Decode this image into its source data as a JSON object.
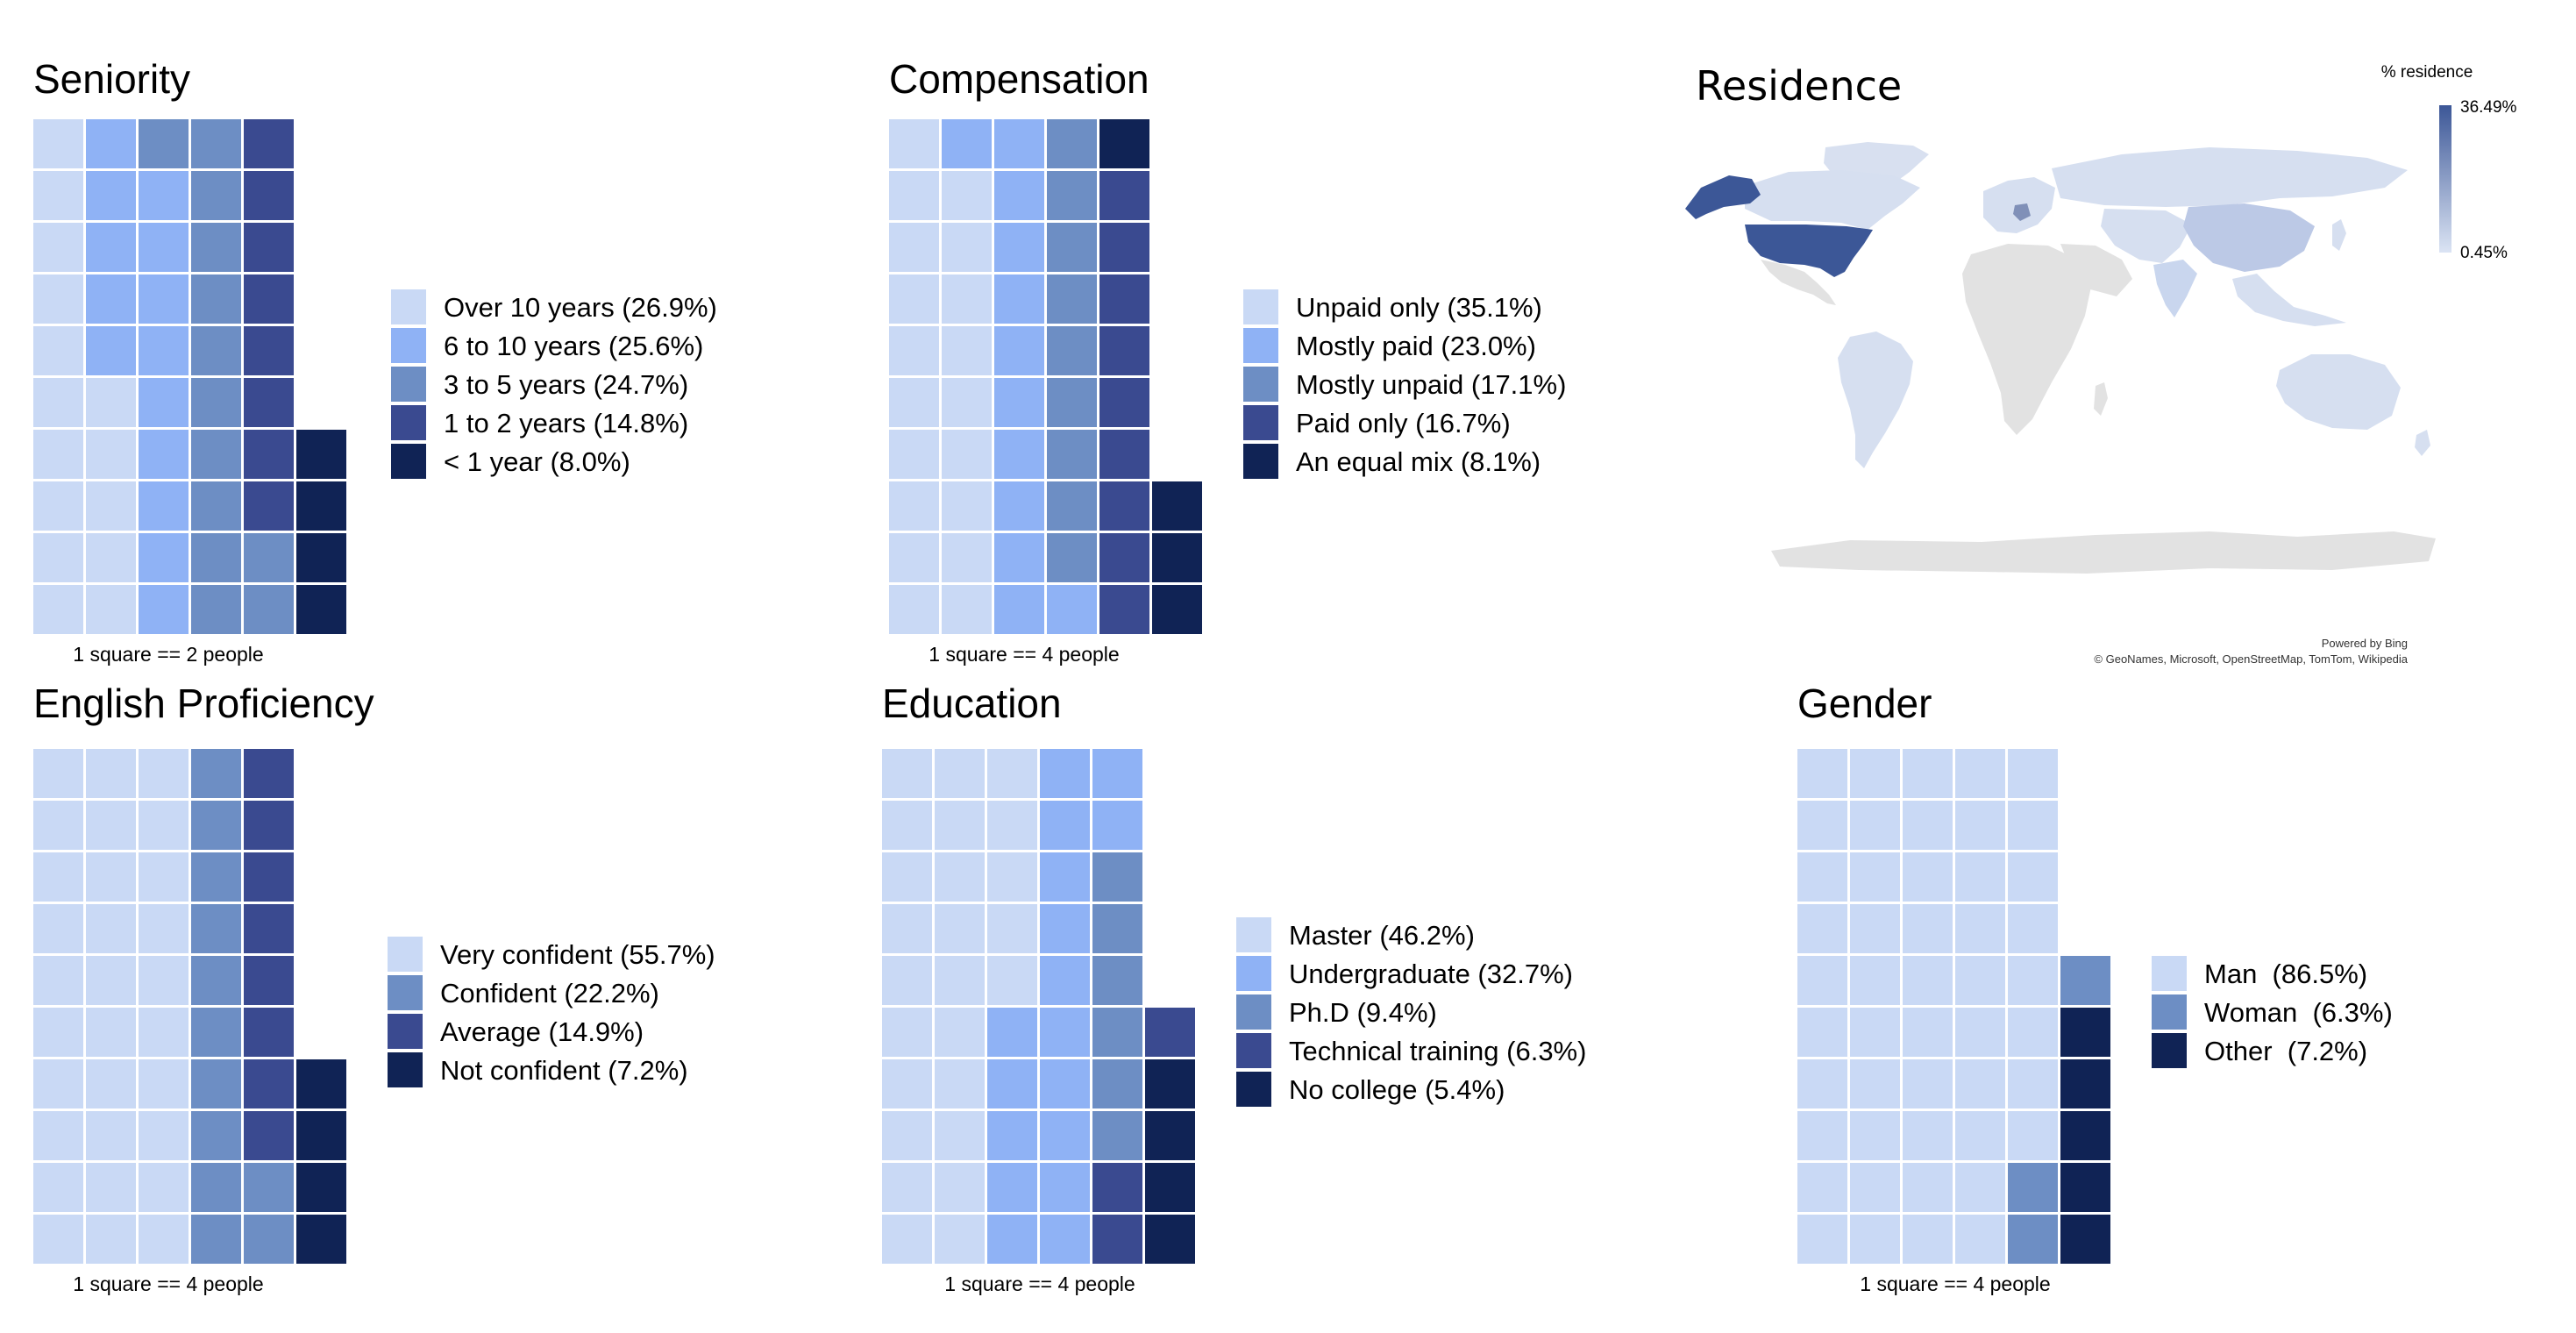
{
  "colors": {
    "c1": "#c9d9f5",
    "c2": "#8fb2f5",
    "c3": "#6d8ec4",
    "c4": "#3a4a90",
    "c5": "#102355",
    "land": "#e2e2e2"
  },
  "chart_data": [
    {
      "type": "waffle",
      "title": "Seniority",
      "caption": "1 square == 2 people",
      "legend": [
        {
          "label": "Over 10 years (26.9%)",
          "color": "c1"
        },
        {
          "label": "6 to 10 years (25.6%)",
          "color": "c2"
        },
        {
          "label": "3 to 5 years (24.7%)",
          "color": "c3"
        },
        {
          "label": "1 to 2 years (14.8%)",
          "color": "c4"
        },
        {
          "label": "< 1 year (8.0%)",
          "color": "c5"
        }
      ],
      "columns": [
        [
          "c1",
          "c1",
          "c1",
          "c1",
          "c1",
          "c1",
          "c1",
          "c1",
          "c1",
          "c1"
        ],
        [
          "c1",
          "c1",
          "c1",
          "c1",
          "c1",
          "c2",
          "c2",
          "c2",
          "c2",
          "c2"
        ],
        [
          "c2",
          "c2",
          "c2",
          "c2",
          "c2",
          "c2",
          "c2",
          "c2",
          "c2",
          "c3"
        ],
        [
          "c3",
          "c3",
          "c3",
          "c3",
          "c3",
          "c3",
          "c3",
          "c3",
          "c3",
          "c3"
        ],
        [
          "c3",
          "c3",
          "c4",
          "c4",
          "c4",
          "c4",
          "c4",
          "c4",
          "c4",
          "c4"
        ],
        [
          "c5",
          "c5",
          "c5",
          "c5"
        ]
      ]
    },
    {
      "type": "waffle",
      "title": "Compensation",
      "caption": "1 square == 4 people",
      "legend": [
        {
          "label": "Unpaid only (35.1%)",
          "color": "c1"
        },
        {
          "label": "Mostly paid (23.0%)",
          "color": "c2"
        },
        {
          "label": "Mostly unpaid (17.1%)",
          "color": "c3"
        },
        {
          "label": "Paid only (16.7%)",
          "color": "c4"
        },
        {
          "label": "An equal mix (8.1%)",
          "color": "c5"
        }
      ],
      "columns": [
        [
          "c1",
          "c1",
          "c1",
          "c1",
          "c1",
          "c1",
          "c1",
          "c1",
          "c1",
          "c1"
        ],
        [
          "c1",
          "c1",
          "c1",
          "c1",
          "c1",
          "c1",
          "c1",
          "c1",
          "c1",
          "c2"
        ],
        [
          "c2",
          "c2",
          "c2",
          "c2",
          "c2",
          "c2",
          "c2",
          "c2",
          "c2",
          "c2"
        ],
        [
          "c2",
          "c3",
          "c3",
          "c3",
          "c3",
          "c3",
          "c3",
          "c3",
          "c3",
          "c3"
        ],
        [
          "c4",
          "c4",
          "c4",
          "c4",
          "c4",
          "c4",
          "c4",
          "c4",
          "c4",
          "c5"
        ],
        [
          "c5",
          "c5",
          "c5"
        ]
      ]
    },
    {
      "type": "waffle",
      "title": "English Proficiency",
      "caption": "1 square == 4 people",
      "legend": [
        {
          "label": "Very confident (55.7%)",
          "color": "c1"
        },
        {
          "label": "Confident (22.2%)",
          "color": "c3"
        },
        {
          "label": "Average (14.9%)",
          "color": "c4"
        },
        {
          "label": "Not confident (7.2%)",
          "color": "c5"
        }
      ],
      "columns": [
        [
          "c1",
          "c1",
          "c1",
          "c1",
          "c1",
          "c1",
          "c1",
          "c1",
          "c1",
          "c1"
        ],
        [
          "c1",
          "c1",
          "c1",
          "c1",
          "c1",
          "c1",
          "c1",
          "c1",
          "c1",
          "c1"
        ],
        [
          "c1",
          "c1",
          "c1",
          "c1",
          "c1",
          "c1",
          "c1",
          "c1",
          "c1",
          "c1"
        ],
        [
          "c3",
          "c3",
          "c3",
          "c3",
          "c3",
          "c3",
          "c3",
          "c3",
          "c3",
          "c3"
        ],
        [
          "c3",
          "c3",
          "c4",
          "c4",
          "c4",
          "c4",
          "c4",
          "c4",
          "c4",
          "c4"
        ],
        [
          "c5",
          "c5",
          "c5",
          "c5"
        ]
      ]
    },
    {
      "type": "waffle",
      "title": "Education",
      "caption": "1 square == 4 people",
      "legend": [
        {
          "label": "Master (46.2%)",
          "color": "c1"
        },
        {
          "label": "Undergraduate (32.7%)",
          "color": "c2"
        },
        {
          "label": "Ph.D (9.4%)",
          "color": "c3"
        },
        {
          "label": "Technical training (6.3%)",
          "color": "c4"
        },
        {
          "label": "No college (5.4%)",
          "color": "c5"
        }
      ],
      "columns": [
        [
          "c1",
          "c1",
          "c1",
          "c1",
          "c1",
          "c1",
          "c1",
          "c1",
          "c1",
          "c1"
        ],
        [
          "c1",
          "c1",
          "c1",
          "c1",
          "c1",
          "c1",
          "c1",
          "c1",
          "c1",
          "c1"
        ],
        [
          "c2",
          "c2",
          "c2",
          "c2",
          "c2",
          "c1",
          "c1",
          "c1",
          "c1",
          "c1"
        ],
        [
          "c2",
          "c2",
          "c2",
          "c2",
          "c2",
          "c2",
          "c2",
          "c2",
          "c2",
          "c2"
        ],
        [
          "c4",
          "c4",
          "c3",
          "c3",
          "c3",
          "c3",
          "c3",
          "c3",
          "c2",
          "c2"
        ],
        [
          "c5",
          "c5",
          "c5",
          "c5",
          "c4"
        ]
      ]
    },
    {
      "type": "waffle",
      "title": "Gender",
      "caption": "1 square == 4 people",
      "legend": [
        {
          "label": "Man  (86.5%)",
          "color": "c1"
        },
        {
          "label": "Woman  (6.3%)",
          "color": "c3"
        },
        {
          "label": "Other  (7.2%)",
          "color": "c5"
        }
      ],
      "columns": [
        [
          "c1",
          "c1",
          "c1",
          "c1",
          "c1",
          "c1",
          "c1",
          "c1",
          "c1",
          "c1"
        ],
        [
          "c1",
          "c1",
          "c1",
          "c1",
          "c1",
          "c1",
          "c1",
          "c1",
          "c1",
          "c1"
        ],
        [
          "c1",
          "c1",
          "c1",
          "c1",
          "c1",
          "c1",
          "c1",
          "c1",
          "c1",
          "c1"
        ],
        [
          "c1",
          "c1",
          "c1",
          "c1",
          "c1",
          "c1",
          "c1",
          "c1",
          "c1",
          "c1"
        ],
        [
          "c3",
          "c3",
          "c1",
          "c1",
          "c1",
          "c1",
          "c1",
          "c1",
          "c1",
          "c1"
        ],
        [
          "c5",
          "c5",
          "c5",
          "c5",
          "c5",
          "c3"
        ]
      ]
    },
    {
      "type": "choropleth-map",
      "title": "Residence",
      "legend_title": "% residence",
      "scale_max": "36.49%",
      "scale_min": "0.45%",
      "highlighted": [
        "United States",
        "Canada",
        "Germany"
      ],
      "credit_line1": "Powered by Bing",
      "credit_line2": "© GeoNames, Microsoft, OpenStreetMap, TomTom, Wikipedia"
    }
  ]
}
